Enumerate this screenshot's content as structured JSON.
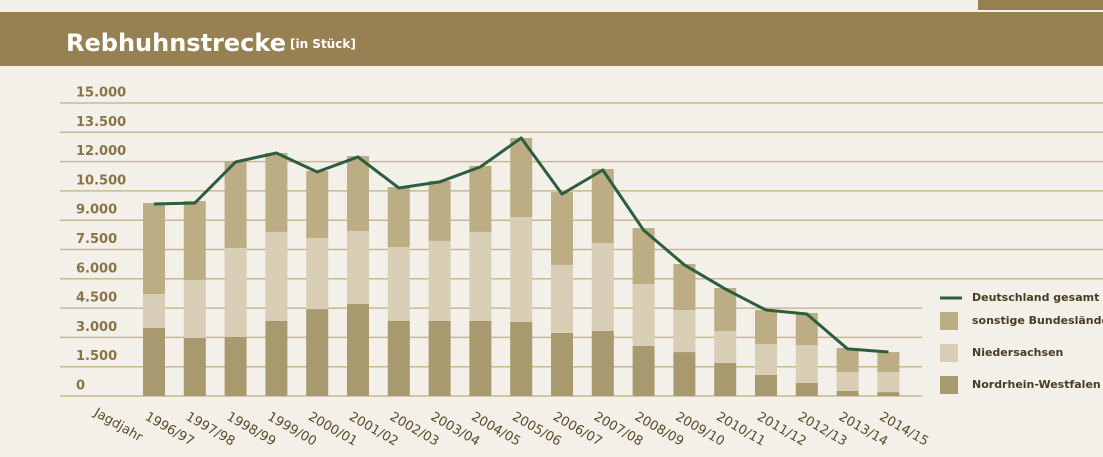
{
  "chart_data": {
    "type": "bar",
    "stacked": true,
    "title": "Rebhuhnstrecke",
    "subtitle": "[in Stück]",
    "xlabel": "Jagdjahr",
    "categories": [
      "1996/97",
      "1997/98",
      "1998/99",
      "1999/00",
      "2000/01",
      "2001/02",
      "2002/03",
      "2003/04",
      "2004/05",
      "2005/06",
      "2006/07",
      "2007/08",
      "2008/09",
      "2009/10",
      "2010/11",
      "2011/12",
      "2012/13",
      "2013/14",
      "2014/15"
    ],
    "series": [
      {
        "name": "Nordrhein-Westfalen",
        "color": "#a89a6e",
        "values": [
          3480,
          2970,
          3020,
          3840,
          4450,
          4710,
          3840,
          3840,
          3840,
          3790,
          3230,
          3330,
          2560,
          2250,
          1690,
          1080,
          670,
          260,
          200
        ]
      },
      {
        "name": "Niedersachsen",
        "color": "#d8cdb5",
        "values": [
          1740,
          2970,
          4560,
          4560,
          3640,
          3740,
          3790,
          4100,
          4560,
          5370,
          3480,
          4500,
          3170,
          2150,
          1640,
          1580,
          1940,
          970,
          1030
        ]
      },
      {
        "name": "sonstige Bundesländer",
        "color": "#bcad84",
        "values": [
          4660,
          4040,
          4450,
          4040,
          3430,
          3840,
          3070,
          3070,
          3380,
          4050,
          3730,
          3790,
          2870,
          2360,
          2200,
          1740,
          1640,
          1230,
          1020
        ]
      }
    ],
    "line": {
      "name": "Deutschland gesamt",
      "color": "#2e5e40",
      "values": [
        9830,
        9880,
        11980,
        12440,
        11470,
        12240,
        10650,
        10960,
        11730,
        13210,
        10340,
        11570,
        8490,
        6710,
        5480,
        4400,
        4200,
        2410,
        2250
      ]
    },
    "ylim": [
      0,
      15000
    ],
    "yticks": [
      0,
      {
        "value": 1500,
        "label": "1.500"
      },
      {
        "value": 3000,
        "label": "3.000"
      },
      {
        "value": 4500,
        "label": "4.500"
      },
      {
        "value": 6000,
        "label": "6.000"
      },
      {
        "value": 7500,
        "label": "7.500"
      },
      {
        "value": 9000,
        "label": "9.000"
      },
      {
        "value": 10500,
        "label": "10.500"
      },
      {
        "value": 12000,
        "label": "12.000"
      },
      {
        "value": 13500,
        "label": "13.500"
      },
      {
        "value": 15000,
        "label": "15.000"
      }
    ],
    "grid": true
  }
}
